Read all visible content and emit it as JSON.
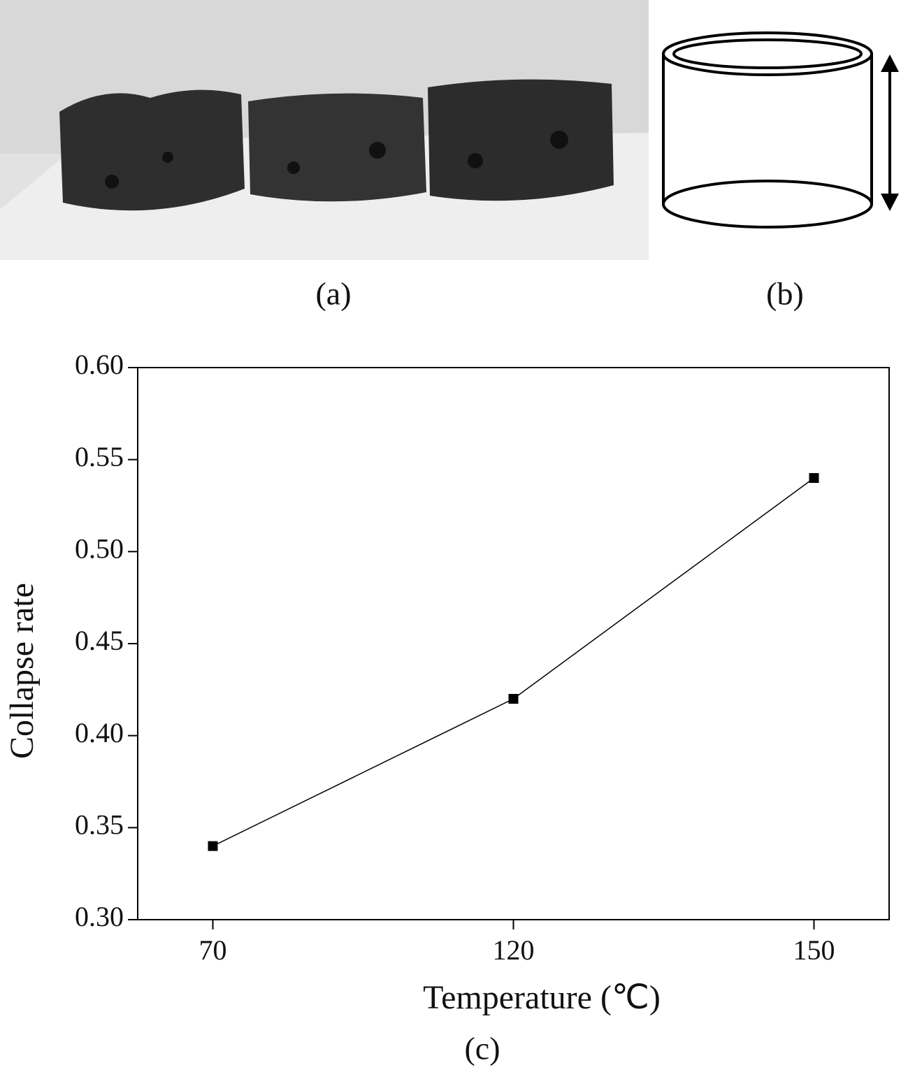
{
  "panels": {
    "a": {
      "caption": "(a)"
    },
    "b": {
      "caption": "(b)"
    },
    "c": {
      "caption": "(c)"
    }
  },
  "chart_data": {
    "type": "line",
    "x_label": "Temperature (℃)",
    "y_label": "Collapse rate",
    "categories": [
      "70",
      "120",
      "150"
    ],
    "series": [
      {
        "color": "#000000",
        "values": [
          0.34,
          0.42,
          0.54
        ]
      }
    ],
    "ylim": [
      0.3,
      0.6
    ],
    "yticks": [
      {
        "value": 0.3,
        "label": "0.30"
      },
      {
        "value": 0.35,
        "label": "0.35"
      },
      {
        "value": 0.4,
        "label": "0.40"
      },
      {
        "value": 0.45,
        "label": "0.45"
      },
      {
        "value": 0.5,
        "label": "0.50"
      },
      {
        "value": 0.55,
        "label": "0.55"
      },
      {
        "value": 0.6,
        "label": "0.60"
      }
    ],
    "marker": "square",
    "grid": false
  }
}
